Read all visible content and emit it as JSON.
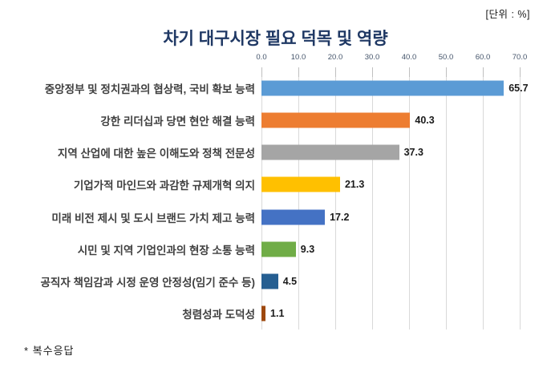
{
  "chart": {
    "unit_note": "[단위 : %]",
    "title": "차기 대구시장 필요 덕목 및 역량",
    "footnote": "* 복수응답"
  },
  "chart_data": {
    "type": "bar",
    "orientation": "horizontal",
    "title": "차기 대구시장 필요 덕목 및 역량",
    "unit": "%",
    "categories": [
      "중앙정부 및 정치권과의 협상력, 국비 확보 능력",
      "강한 리더십과 당면 현안 해결 능력",
      "지역 산업에 대한 높은 이해도와 정책 전문성",
      "기업가적 마인드와 과감한 규제개혁 의지",
      "미래 비전 제시 및 도시 브랜드 가치 제고 능력",
      "시민 및 지역 기업인과의 현장 소통 능력",
      "공직자 책임감과 시정 운영 안정성(임기 준수 등)",
      "청렴성과 도덕성"
    ],
    "values": [
      65.7,
      40.3,
      37.3,
      21.3,
      17.2,
      9.3,
      4.5,
      1.1
    ],
    "bar_colors": [
      "#5B9BD5",
      "#ED7D31",
      "#A5A5A5",
      "#FFC000",
      "#4472C4",
      "#70AD47",
      "#255E91",
      "#9E480E"
    ],
    "x_ticks": [
      "0.0",
      "10.0",
      "20.0",
      "30.0",
      "40.0",
      "50.0",
      "60.0",
      "70.0"
    ],
    "x_tick_values": [
      0,
      10,
      20,
      30,
      40,
      50,
      60,
      70
    ],
    "xlim": [
      0,
      70
    ],
    "grid": true,
    "value_labels": true,
    "legend": false,
    "title_color": "#1F3864",
    "footnote": "* 복수응답"
  }
}
